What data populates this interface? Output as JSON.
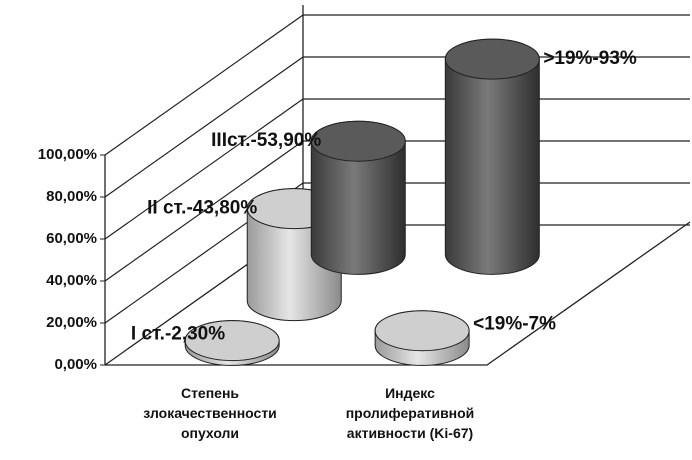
{
  "chart_data": {
    "type": "cylinder3d",
    "categories": [
      [
        "Степень",
        "злокачественности",
        "опухоли"
      ],
      [
        "Индекс",
        "пролиферативной",
        "активности (Ki-67)"
      ]
    ],
    "series": [
      {
        "color": "#cfcfcf",
        "values": [
          2.3,
          7
        ],
        "value_labels": [
          "I ст.-2,30%",
          "<19%-7%"
        ]
      },
      {
        "color": "#cfcfcf",
        "values": [
          43.8,
          null
        ],
        "value_labels": [
          "II ст.-43,80%",
          null
        ]
      },
      {
        "color": "#5a5a5a",
        "values": [
          53.9,
          93
        ],
        "value_labels": [
          "IIIст.-53,90%",
          ">19%-93%"
        ]
      }
    ],
    "ylim": [
      0,
      100
    ],
    "yticks": [
      {
        "value": 0,
        "label": "0,00%"
      },
      {
        "value": 20,
        "label": "20,00%"
      },
      {
        "value": 40,
        "label": "40,00%"
      },
      {
        "value": 60,
        "label": "60,00%"
      },
      {
        "value": 80,
        "label": "80,00%"
      },
      {
        "value": 100,
        "label": "100,00%"
      }
    ],
    "grid": true
  }
}
